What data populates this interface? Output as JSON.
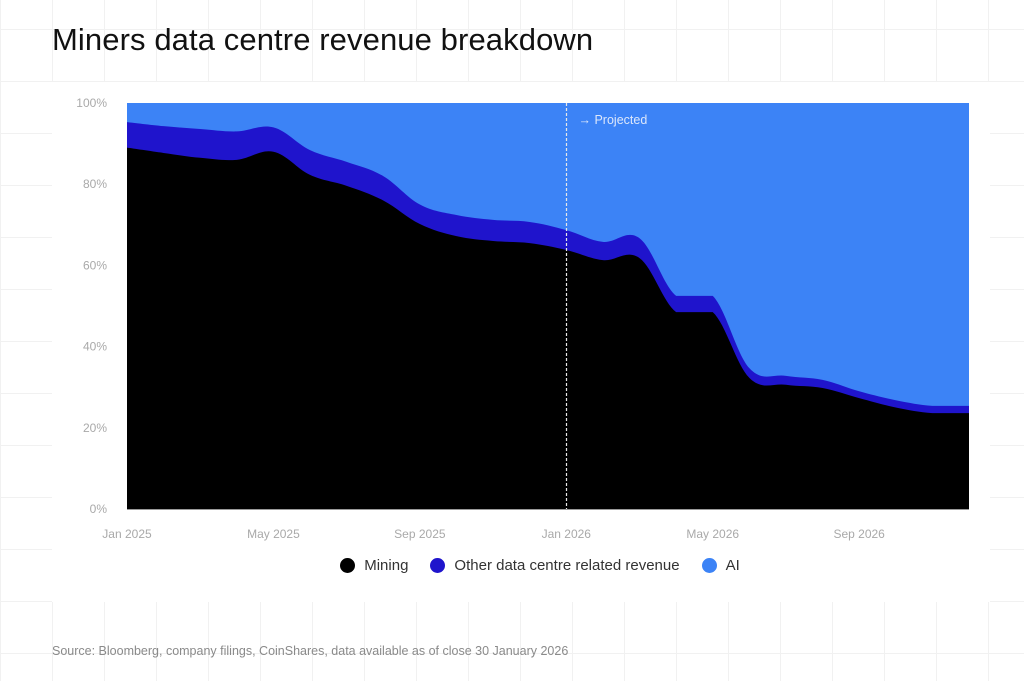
{
  "title": "Miners data centre revenue breakdown",
  "source": "Source: Bloomberg, company filings, CoinShares, data available as of close 30 January 2026",
  "colors": {
    "mining": "#000000",
    "other": "#1f14cc",
    "ai": "#3c83f6",
    "projected_line": "#e8e8e8"
  },
  "chart_data": {
    "type": "area",
    "stacked": true,
    "normalized_percent": true,
    "title": "Miners data centre revenue breakdown",
    "xlabel": "",
    "ylabel": "",
    "ylim": [
      0,
      100
    ],
    "y_ticks": [
      "0%",
      "20%",
      "40%",
      "60%",
      "80%",
      "100%"
    ],
    "y_tick_values": [
      0,
      20,
      40,
      60,
      80,
      100
    ],
    "x_tick_labels": [
      "Jan 2025",
      "May 2025",
      "Sep 2025",
      "Jan 2026",
      "May 2026",
      "Sep 2026"
    ],
    "x_tick_indices": [
      0,
      4,
      8,
      12,
      16,
      20
    ],
    "x": [
      "Jan 2025",
      "Feb 2025",
      "Mar 2025",
      "Apr 2025",
      "May 2025",
      "Jun 2025",
      "Jul 2025",
      "Aug 2025",
      "Sep 2025",
      "Oct 2025",
      "Nov 2025",
      "Dec 2025",
      "Jan 2026",
      "Feb 2026",
      "Mar 2026",
      "Apr 2026",
      "May 2026",
      "Jun 2026",
      "Jul 2026",
      "Aug 2026",
      "Sep 2026",
      "Oct 2026",
      "Nov 2026",
      "Dec 2026"
    ],
    "series": [
      {
        "name": "Mining",
        "key": "mining",
        "values": [
          89.0,
          87.7,
          86.5,
          86.0,
          88.0,
          82.3,
          79.6,
          76.0,
          70.2,
          67.2,
          66.0,
          65.5,
          63.8,
          61.3,
          61.8,
          48.5,
          48.5,
          32.3,
          30.6,
          29.8,
          27.3,
          25.0,
          23.6,
          23.6
        ]
      },
      {
        "name": "Other data centre related revenue",
        "key": "other",
        "values": [
          6.3,
          6.6,
          7.1,
          7.0,
          6.0,
          6.1,
          5.9,
          6.0,
          4.8,
          5.2,
          5.2,
          5.2,
          4.9,
          4.5,
          4.9,
          4.0,
          4.0,
          2.4,
          2.2,
          2.0,
          1.7,
          1.8,
          1.8,
          1.8
        ]
      },
      {
        "name": "AI",
        "key": "ai",
        "values": [
          4.7,
          5.7,
          6.4,
          7.0,
          6.0,
          11.6,
          14.5,
          18.0,
          25.0,
          27.6,
          28.8,
          29.3,
          31.3,
          34.2,
          33.3,
          47.5,
          47.5,
          65.3,
          67.2,
          68.2,
          71.0,
          73.2,
          74.6,
          74.6
        ]
      }
    ],
    "annotations": [
      {
        "text": "→ Projected",
        "x": "Jan 2026",
        "style": "dashed vertical line"
      }
    ],
    "grid": false,
    "legend_position": "bottom-center"
  },
  "legend": [
    {
      "label": "Mining",
      "key": "mining"
    },
    {
      "label": "Other data centre related revenue",
      "key": "other"
    },
    {
      "label": "AI",
      "key": "ai"
    }
  ]
}
